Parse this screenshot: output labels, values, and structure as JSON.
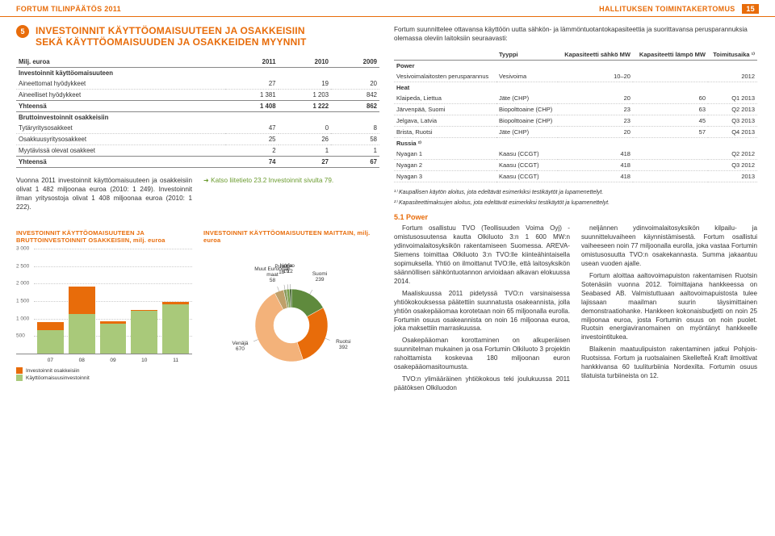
{
  "header": {
    "left": "FORTUM TILINPÄÄTÖS 2011",
    "right": "HALLITUKSEN TOIMINTAKERTOMUS",
    "page_num": "15"
  },
  "section": {
    "num": "5",
    "title_line1": "INVESTOINNIT KÄYTTÖOMAISUUTEEN JA OSAKKEISIIN",
    "title_line2": "SEKÄ KÄYTTÖOMAISUUDEN JA OSAKKEIDEN MYYNNIT"
  },
  "table1": {
    "col0": "Milj. euroa",
    "cols": [
      "2011",
      "2010",
      "2009"
    ],
    "heading1": "Investoinnit käyttöomaisuuteen",
    "rows1": [
      {
        "label": "Aineettomat hyödykkeet",
        "vals": [
          "27",
          "19",
          "20"
        ]
      },
      {
        "label": "Aineelliset hyödykkeet",
        "vals": [
          "1 381",
          "1 203",
          "842"
        ]
      }
    ],
    "total1": {
      "label": "Yhteensä",
      "vals": [
        "1 408",
        "1 222",
        "862"
      ]
    },
    "heading2": "Bruttoinvestoinnit osakkeisiin",
    "rows2": [
      {
        "label": "Tytäryritysosakkeet",
        "vals": [
          "47",
          "0",
          "8"
        ]
      },
      {
        "label": "Osakkuusyritysosakkeet",
        "vals": [
          "25",
          "26",
          "58"
        ]
      },
      {
        "label": "Myytävissä olevat osakkeet",
        "vals": [
          "2",
          "1",
          "1"
        ]
      }
    ],
    "total2": {
      "label": "Yhteensä",
      "vals": [
        "74",
        "27",
        "67"
      ]
    }
  },
  "body_left": {
    "p1": "Vuonna 2011 investoinnit käyttöomaisuuteen ja osakkeisiin olivat 1 482 miljoonaa euroa (2010: 1 249). Investoinnit ilman yritysostoja olivat 1 408 miljoonaa euroa (2010: 1 222).",
    "link": "Katso liitetieto 23.2 Investoinnit sivulta 79."
  },
  "bar_chart": {
    "title": "INVESTOINNIT KÄYTTÖOMAISUUTEEN JA BRUTTOINVESTOINNIT OSAKKEISIIN, milj. euroa",
    "ylim": [
      0,
      3000
    ],
    "ytick_step": 500,
    "yticks": [
      "500",
      "1 000",
      "1 500",
      "2 000",
      "2 500",
      "3 000"
    ],
    "categories": [
      "07",
      "08",
      "09",
      "10",
      "11"
    ],
    "series_top": {
      "label": "Investoinnit osakkeisiin",
      "color": "#e86c0a",
      "values": [
        230,
        790,
        67,
        27,
        74
      ]
    },
    "series_bot": {
      "label": "Käyttöomaisuusinvestoinnit",
      "color": "#a9c97a",
      "values": [
        670,
        1130,
        862,
        1222,
        1408
      ]
    },
    "grid_color": "#cccccc"
  },
  "donut_chart": {
    "title": "INVESTOINNIT KÄYTTÖOMAISUUTEEN MAITTAIN, milj. euroa",
    "total": 1408,
    "slices": [
      {
        "label": "Suomi",
        "value": 239,
        "color": "#5f8a3d"
      },
      {
        "label": "Ruotsi",
        "value": 392,
        "color": "#e86c0a"
      },
      {
        "label": "Venäjä",
        "value": 670,
        "color": "#f3b27a"
      },
      {
        "label": "Muut Euroopan maat",
        "value": 58,
        "color": "#bfa06a"
      },
      {
        "label": "Puola",
        "value": 18,
        "color": "#8a9b5e"
      },
      {
        "label": "Norja",
        "value": 19,
        "color": "#7aa04a"
      },
      {
        "label": "Viro",
        "value": 12,
        "color": "#3e5d2a"
      }
    ]
  },
  "right": {
    "intro": "Fortum suunnittelee ottavansa käyttöön uutta sähkön- ja lämmöntuotantokapasiteettia ja suorittavansa perusparannuksia olemassa oleviin laitoksiin seuraavasti:",
    "cap_table": {
      "cols": [
        "",
        "Tyyppi",
        "Kapasiteetti sähkö MW",
        "Kapasiteetti lämpö MW",
        "Toimitusaika ¹⁾"
      ],
      "groups": [
        {
          "name": "Power",
          "rows": [
            {
              "c": [
                "Vesivoimalaitosten perusparannus",
                "Vesivoima",
                "10–20",
                "",
                "2012"
              ]
            }
          ]
        },
        {
          "name": "Heat",
          "rows": [
            {
              "c": [
                "Klaipeda, Liettua",
                "Jäte (CHP)",
                "20",
                "60",
                "Q1 2013"
              ]
            },
            {
              "c": [
                "Järvenpää, Suomi",
                "Biopolttoaine (CHP)",
                "23",
                "63",
                "Q2 2013"
              ]
            },
            {
              "c": [
                "Jelgava, Latvia",
                "Biopolttoaine (CHP)",
                "23",
                "45",
                "Q3 2013"
              ]
            },
            {
              "c": [
                "Brista, Ruotsi",
                "Jäte (CHP)",
                "20",
                "57",
                "Q4 2013"
              ]
            }
          ]
        },
        {
          "name": "Russia ²⁾",
          "rows": [
            {
              "c": [
                "Nyagan 1",
                "Kaasu (CCGT)",
                "418",
                "",
                "Q2 2012"
              ]
            },
            {
              "c": [
                "Nyagan 2",
                "Kaasu (CCGT)",
                "418",
                "",
                "Q3 2012"
              ]
            },
            {
              "c": [
                "Nyagan 3",
                "Kaasu (CCGT)",
                "418",
                "",
                "2013"
              ]
            }
          ]
        }
      ]
    },
    "footnote1": "¹⁾ Kaupallisen käytön aloitus, jota edeltävät esimerkiksi testikäytöt ja lupamenettelyt.",
    "footnote2": "²⁾ Kapasiteettimaksujen aloitus, jota edeltävät esimerkiksi testikäytöt ja lupamenettelyt.",
    "subheading": "5.1 Power",
    "col1": "Fortum osallistuu TVO (Teollisuuden Voima Oyj) -omistusosuutensa kautta Olkiluoto 3:n 1 600 MW:n ydinvoimalaitosyksikön rakentamiseen Suomessa. AREVA-Siemens toimittaa Olkiluoto 3:n TVO:lle kiinteähintaisella sopimuksella. Yhtiö on ilmoittanut TVO:lle, että laitosyksikön säännöllisen sähköntuotannon arvioidaan alkavan elokuussa 2014.\n    Maaliskuussa 2011 pidetyssä TVO:n varsinaisessa yhtiökokouksessa päätettiin suunnatusta osakeannista, jolla yhtiön osakepääomaa korotetaan noin 65 miljoonalla eurolla. Fortumin osuus osakeannista on noin 16 miljoonaa euroa, joka maksettiin marraskuussa.\n    Osakepääoman korottaminen on alkuperäisen suunnitelman mukainen ja osa Fortumin Olkiluoto 3 projektin rahoittamista koskevaa 180 miljoonan euron osakepääomasitoumusta.\n    TVO:n ylimääräinen yhtiökokous teki joulukuussa 2011 päätöksen Olkiluodon",
    "col2": "neljännen ydinvoimalaitosyksikön kilpailu- ja suunnitteluvaiheen käynnistämisestä. Fortum osallistui vaiheeseen noin 77 miljoonalla eurolla, joka vastaa Fortumin omistusosuutta TVO:n osakekannasta. Summa jakaantuu usean vuoden ajalle.\n    Fortum aloittaa aaltovoimapuiston rakentamisen Ruotsin Sotenäsiin vuonna 2012. Toimittajana hankkeessa on Seabased AB. Valmistuttuaan aaltovoimapuistosta tulee lajissaan maailman suurin täysimittainen demonstraatiohanke. Hankkeen kokonaisbudjetti on noin 25 miljoonaa euroa, josta Fortumin osuus on noin puolet. Ruotsin energiaviranomainen on myöntänyt hankkeelle investointitukea.\n    Blaikenin maatuulipuiston rakentaminen jatkui Pohjois-Ruotsissa. Fortum ja ruotsalainen Skellefteå Kraft ilmoittivat hankkivansa 60 tuuliturbiinia Nordexilta. Fortumin osuus tilatuista turbiineista on 12."
  }
}
